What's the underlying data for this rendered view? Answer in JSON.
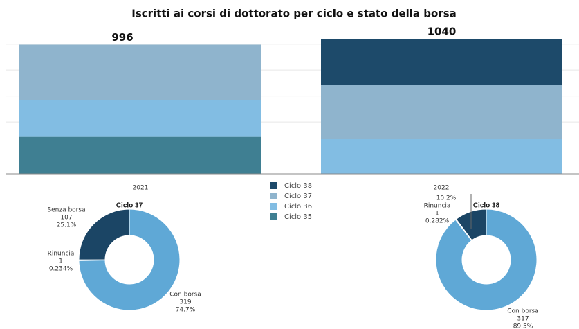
{
  "chart_data": [
    {
      "type": "stacked-bar",
      "title": "Iscritti ai corsi di dottorato per ciclo e stato della borsa",
      "categories": [
        "2021",
        "2022"
      ],
      "totals": [
        996,
        1040
      ],
      "series": [
        {
          "name": "Ciclo 38",
          "color": "#1d4a6a",
          "values": [
            null,
            354
          ]
        },
        {
          "name": "Ciclo 37",
          "color": "#8fb4cd",
          "values": [
            427,
            415
          ]
        },
        {
          "name": "Ciclo 36",
          "color": "#82bde3",
          "values": [
            284,
            271
          ]
        },
        {
          "name": "Ciclo 35",
          "color": "#3f7f92",
          "values": [
            285,
            null
          ]
        }
      ],
      "ylim": [
        0,
        1100
      ],
      "yticks": [
        0,
        200,
        400,
        600,
        800,
        1000
      ],
      "grid": true
    },
    {
      "type": "donut",
      "title": "Ciclo 37",
      "categories": [
        "Senza borsa",
        "Rinuncia",
        "Con borsa"
      ],
      "values": [
        107,
        1,
        319
      ],
      "value_labels": [
        "25.1%",
        "0.234%",
        "74.7%"
      ],
      "colors": [
        "#1b4565",
        "#a6cfe9",
        "#5fa8d6"
      ]
    },
    {
      "type": "donut",
      "title": "Ciclo 38",
      "categories": [
        null,
        "Rinuncia",
        "Con borsa"
      ],
      "values": [
        36,
        1,
        317
      ],
      "value_labels": [
        "10.2%",
        "0.282%",
        "89.5%"
      ],
      "colors": [
        "#1b4565",
        "#a6cfe9",
        "#5fa8d6"
      ]
    }
  ]
}
